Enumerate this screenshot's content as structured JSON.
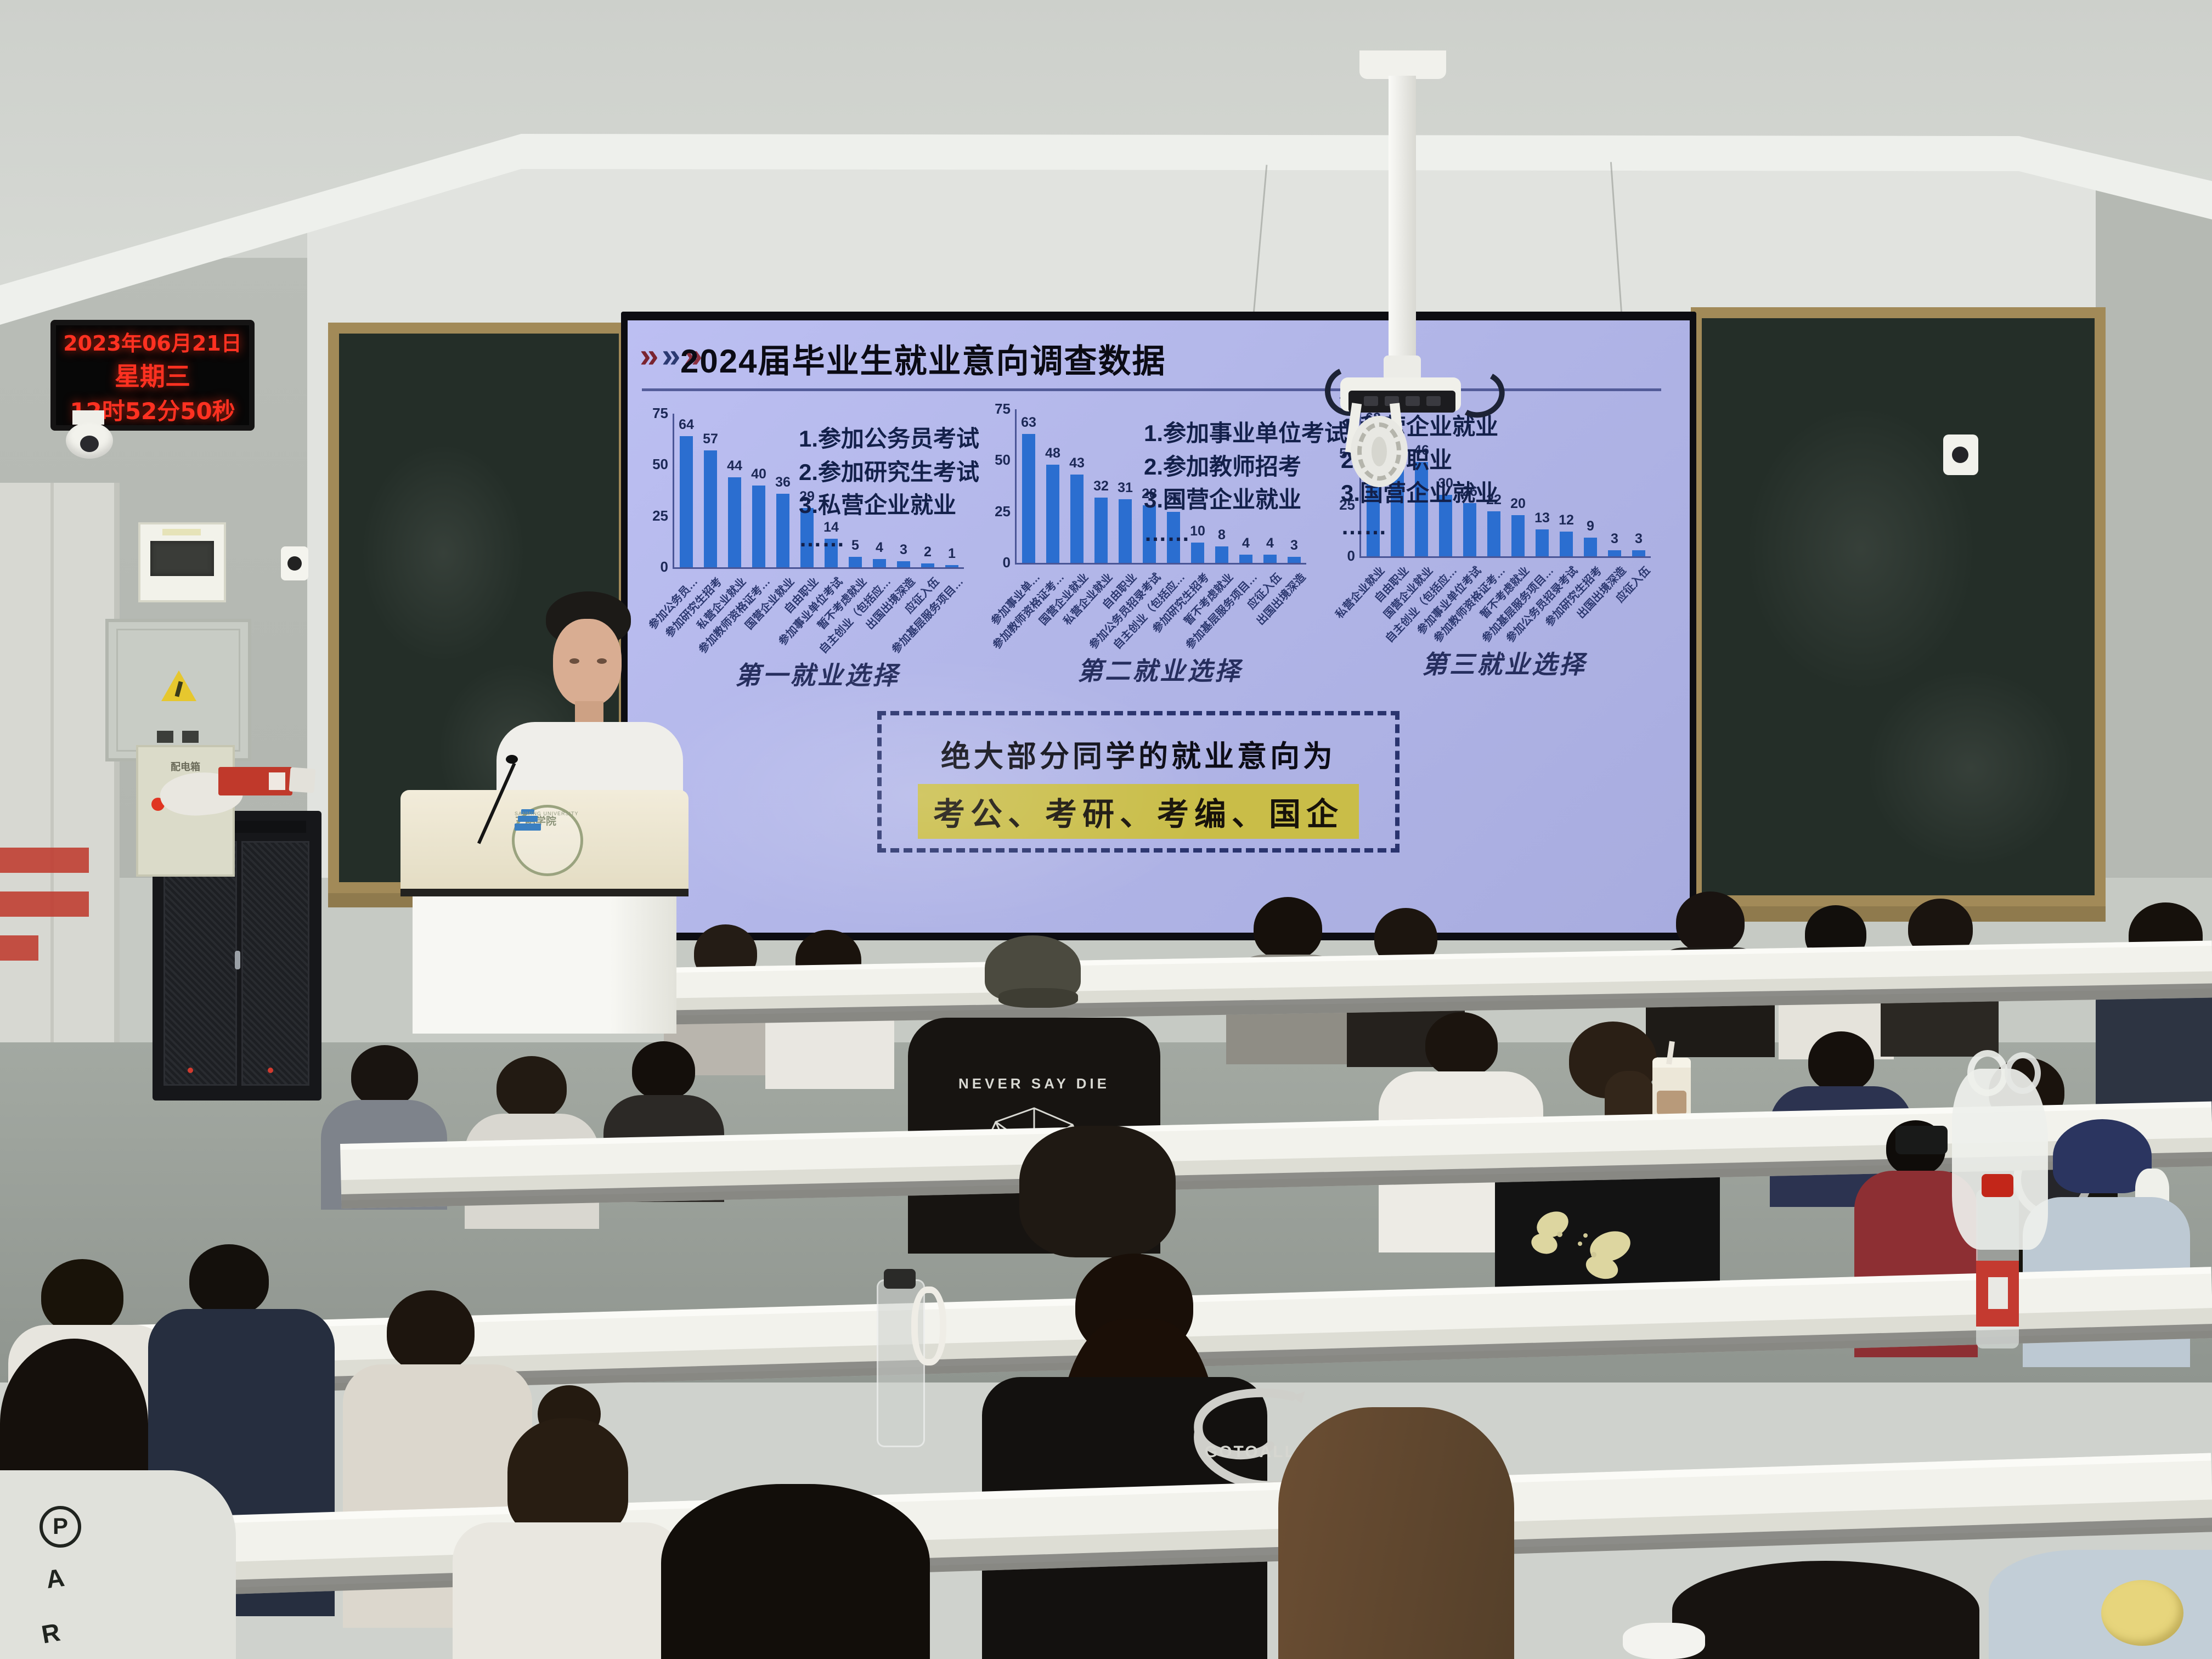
{
  "slide": {
    "chevrons": "»»»",
    "title": "2024届毕业生就业意向调查数据",
    "callout_line1": "绝大部分同学的就业意向为",
    "callout_line2": "考公、考研、考编、国企"
  },
  "chart_data": [
    {
      "type": "bar",
      "title": "第一就业选择",
      "categories": [
        "参加公务员…",
        "参加研究生招考",
        "私营企业就业",
        "参加教师资格证考…",
        "国营企业就业",
        "自由职业",
        "参加事业单位考试",
        "暂不考虑就业",
        "自主创业（包括应…",
        "出国出境深造",
        "应征入伍",
        "参加基层服务项目…"
      ],
      "values": [
        64,
        57,
        44,
        40,
        36,
        29,
        14,
        5,
        4,
        3,
        2,
        1
      ],
      "legend": [
        "1.参加公务员考试",
        "2.参加研究生考试",
        "3.私营企业就业",
        "……"
      ],
      "ylim": [
        0,
        75
      ],
      "yticks": [
        0,
        25,
        50,
        75
      ],
      "xlabel": "",
      "ylabel": ""
    },
    {
      "type": "bar",
      "title": "第二就业选择",
      "categories": [
        "参加事业单…",
        "参加教师资格证考…",
        "国营企业就业",
        "私营企业就业",
        "自由职业",
        "参加公务员招录考试",
        "自主创业（包括应…",
        "参加研究生招考",
        "暂不考虑就业",
        "参加基层服务项目…",
        "应征入伍",
        "出国出境深造"
      ],
      "values": [
        63,
        48,
        43,
        32,
        31,
        28,
        25,
        10,
        8,
        4,
        4,
        3
      ],
      "legend": [
        "1.参加事业单位考试",
        "2.参加教师招考",
        "3.国营企业就业",
        "……"
      ],
      "ylim": [
        0,
        75
      ],
      "yticks": [
        0,
        25,
        50,
        75
      ],
      "xlabel": "",
      "ylabel": ""
    },
    {
      "type": "bar",
      "title": "第三就业选择",
      "categories": [
        "私营企业就业",
        "自由职业",
        "国营企业就业",
        "自主创业（包括应…",
        "参加事业单位考试",
        "参加教师资格证考…",
        "暂不考虑就业",
        "参加基层服务项目…",
        "参加公务员招录考试",
        "参加研究生招考",
        "出国出境深造",
        "应征入伍"
      ],
      "values": [
        62,
        53,
        46,
        30,
        26,
        22,
        20,
        13,
        12,
        9,
        3,
        3
      ],
      "legend": [
        "1.私营企业就业",
        "2.自由职业",
        "3.国营企业就业",
        "……"
      ],
      "ylim": [
        0,
        75
      ],
      "yticks": [
        0,
        25,
        50,
        75
      ],
      "xlabel": "",
      "ylabel": ""
    }
  ],
  "led_clock": {
    "date": "2023年06月21日",
    "weekday": "星期三",
    "time": "12时52分50秒"
  },
  "podium_logo": {
    "cn": "三明学院",
    "en": "SANMING UNIVERSITY"
  },
  "apparel": {
    "cap_shirt_text": "NEVER SAY DIE",
    "dragon_shirt_text": "GOTOALLL",
    "foreground_letters": [
      "P",
      "A",
      "R"
    ]
  },
  "colors": {
    "screen_bg": "#b3b7e8",
    "bar_blue": "#2b6ed0",
    "callout_highlight": "#c9bd48",
    "board_green": "#242e28",
    "clock_red": "#ff3121"
  }
}
